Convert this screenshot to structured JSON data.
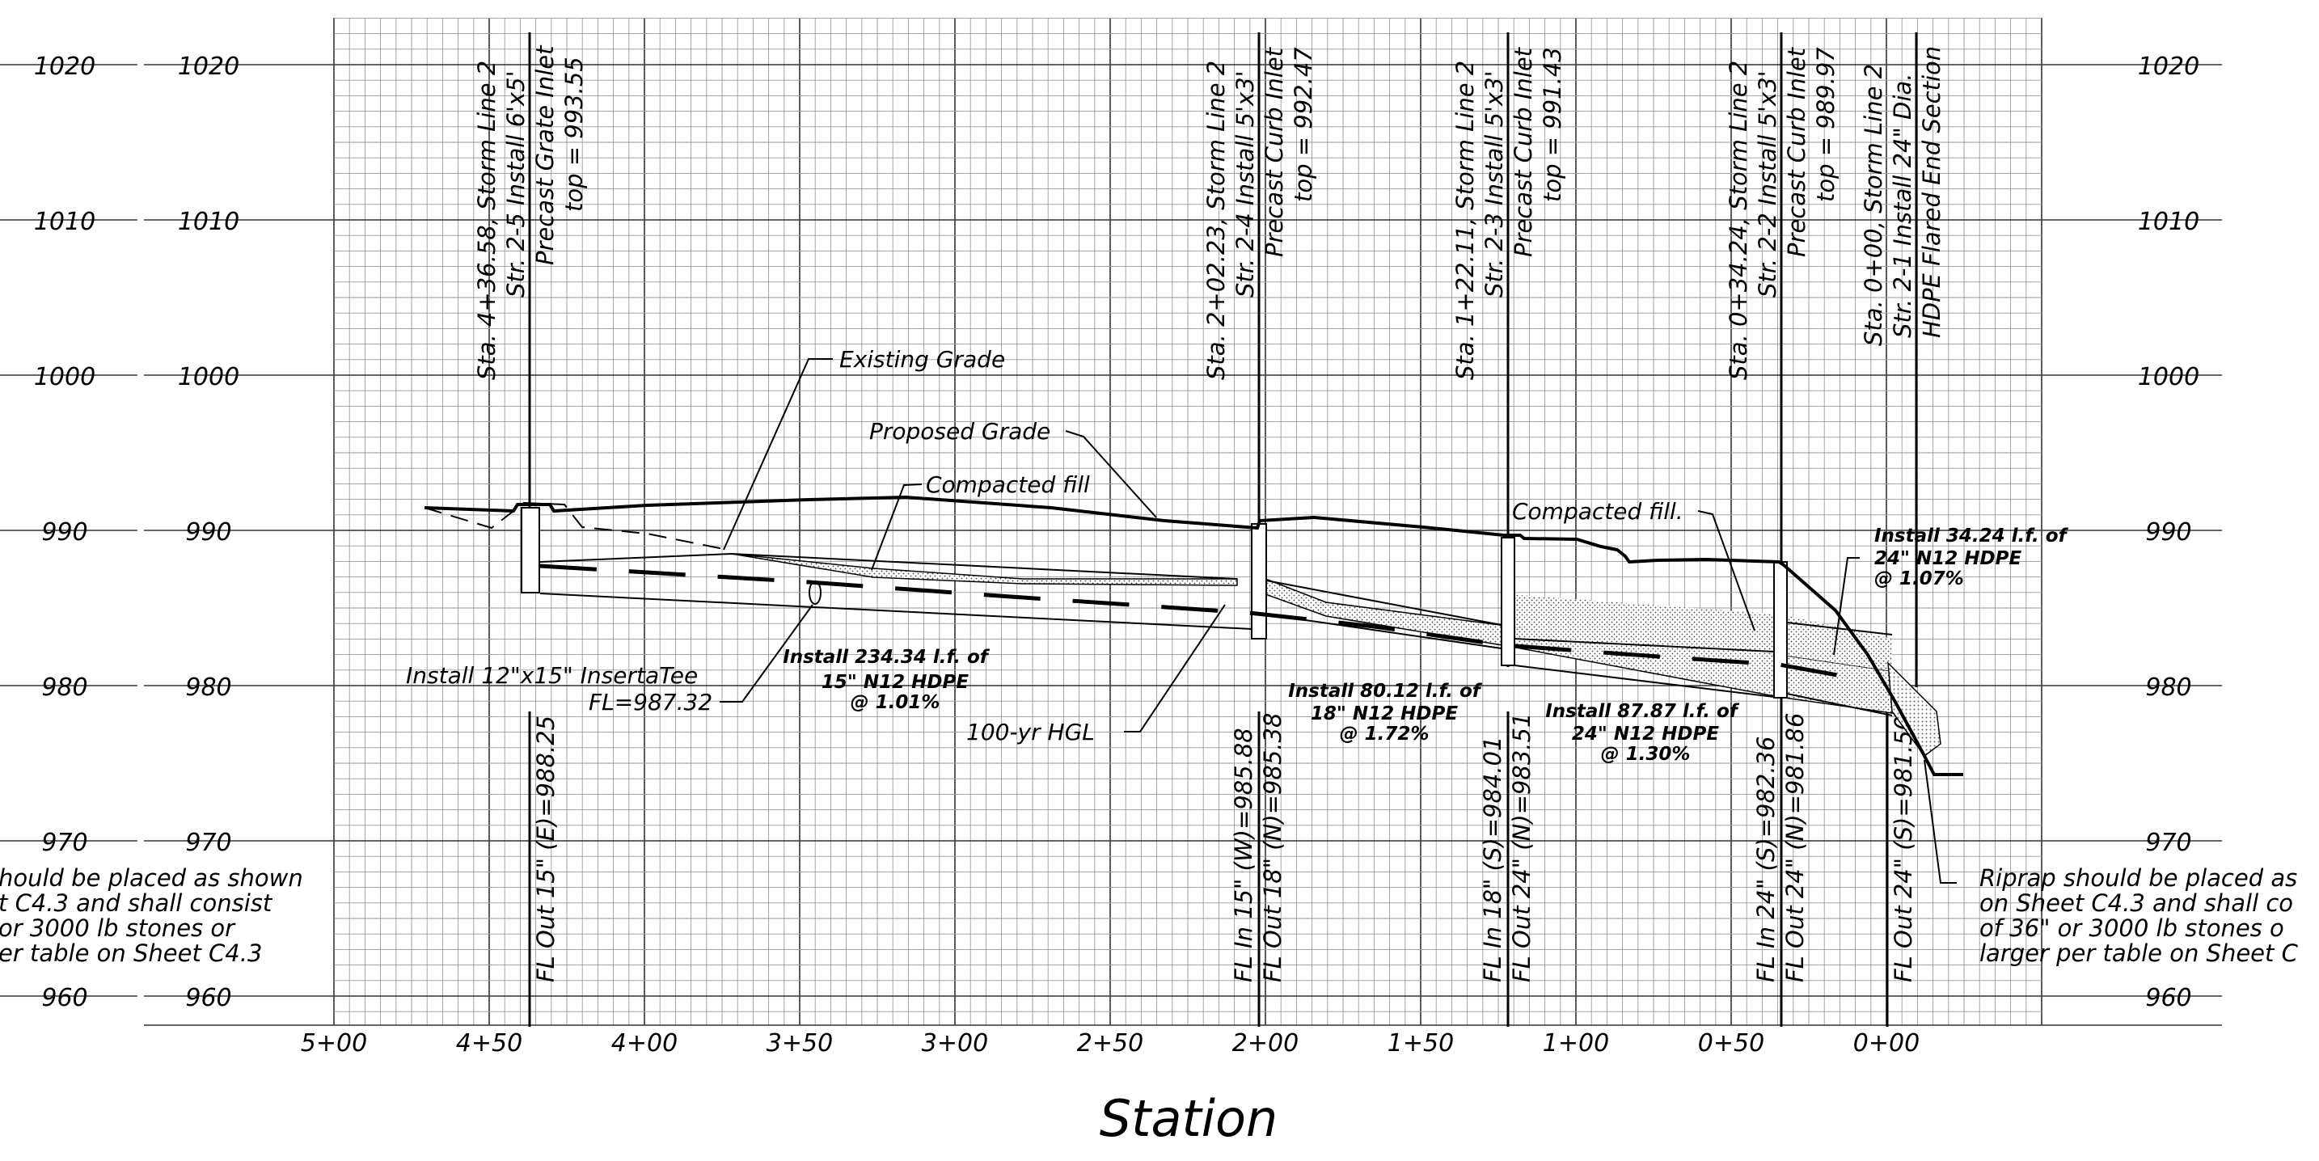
{
  "elevation_labels": [
    "1020",
    "1010",
    "1000",
    "990",
    "980",
    "970",
    "960"
  ],
  "station_labels": [
    "5+00",
    "4+50",
    "4+00",
    "3+50",
    "3+00",
    "2+50",
    "2+00",
    "1+50",
    "1+00",
    "0+50",
    "0+00"
  ],
  "axis_title": "Station",
  "structures": [
    {
      "line1": "Sta. 4+36.58, Storm Line 2",
      "line2": "Str. 2-5 Install 6'x5'",
      "line3": "Precast Grate Inlet",
      "line4": "top = 993.55"
    },
    {
      "line1": "Sta. 2+02.23, Storm Line 2",
      "line2": "Str. 2-4 Install 5'x3'",
      "line3": "Precast Curb Inlet",
      "line4": "top = 992.47"
    },
    {
      "line1": "Sta. 1+22.11, Storm Line 2",
      "line2": "Str. 2-3 Install 5'x3'",
      "line3": "Precast Curb Inlet",
      "line4": "top = 991.43"
    },
    {
      "line1": "Sta. 0+34.24, Storm Line 2",
      "line2": "Str. 2-2 Install 5'x3'",
      "line3": "Precast Curb Inlet",
      "line4": "top = 989.97"
    },
    {
      "line1": "Sta. 0+00, Storm Line 2",
      "line2": "Str. 2-1 Install 24\" Dia.",
      "line3": "HDPE Flared End Section",
      "line4": ""
    }
  ],
  "flowlines": [
    "FL Out 15\" (E)=988.25",
    "FL In 15\" (W)=985.88",
    "FL Out 18\" (N)=985.38",
    "FL In 18\" (S)=984.01",
    "FL Out 24\" (N)=983.51",
    "FL In 24\" (S)=982.36",
    "FL Out 24\" (N)=981.86",
    "FL Out 24\" (S)=981.50"
  ],
  "callouts": {
    "existing_grade": "Existing Grade",
    "proposed_grade": "Proposed Grade",
    "compacted_fill_1": "Compacted fill",
    "compacted_fill_2": "Compacted fill.",
    "hgl": "100-yr HGL",
    "insertatee_1": "Install 12\"x15\" InsertaTee",
    "insertatee_2": "FL=987.32"
  },
  "pipes": [
    {
      "l1": "Install 234.34 l.f. of",
      "l2": "15\" N12 HDPE",
      "l3": "@ 1.01%"
    },
    {
      "l1": "Install 80.12 l.f. of",
      "l2": "18\" N12 HDPE",
      "l3": "@ 1.72%"
    },
    {
      "l1": "Install 87.87 l.f. of",
      "l2": "24\" N12 HDPE",
      "l3": "@ 1.30%"
    },
    {
      "l1": "Install 34.24 l.f. of",
      "l2": "24\" N12 HDPE",
      "l3": "@ 1.07%"
    }
  ],
  "riprap_left": [
    "hould be placed as shown",
    "t C4.3 and shall consist",
    "or 3000 lb stones or",
    "er table on Sheet C4.3"
  ],
  "riprap_right": [
    "Riprap should be placed as",
    "on Sheet C4.3 and shall co",
    "of 36\" or 3000 lb stones o",
    "larger per table on Sheet C"
  ]
}
